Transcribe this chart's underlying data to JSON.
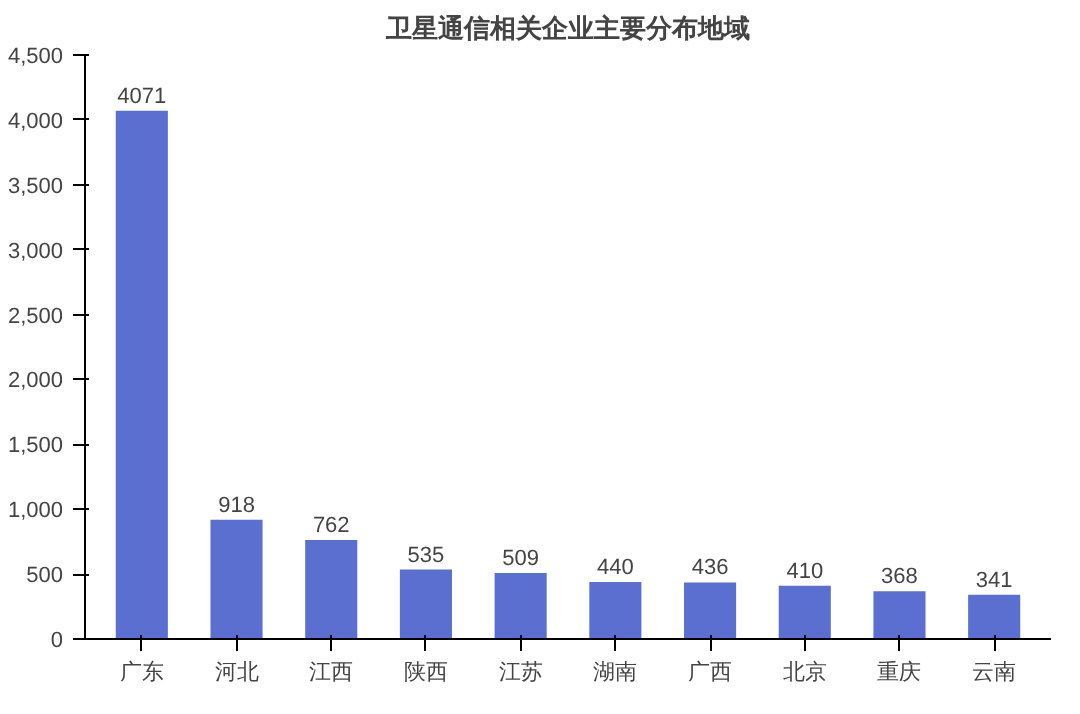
{
  "chart_data": {
    "type": "bar",
    "title": "卫星通信相关企业主要分布地域",
    "categories": [
      "广东",
      "河北",
      "江西",
      "陕西",
      "江苏",
      "湖南",
      "广西",
      "北京",
      "重庆",
      "云南"
    ],
    "values": [
      4071,
      918,
      762,
      535,
      509,
      440,
      436,
      410,
      368,
      341
    ],
    "color": "#5a6fd0",
    "ylim": [
      0,
      4500
    ],
    "yticks": [
      0,
      500,
      {
        "value": 1000,
        "label": "1,000"
      },
      {
        "value": 1500,
        "label": "1,500"
      },
      {
        "value": 2000,
        "label": "2,000"
      },
      {
        "value": 2500,
        "label": "2,500"
      },
      {
        "value": 3000,
        "label": "3,000"
      },
      {
        "value": 3500,
        "label": "3,500"
      },
      {
        "value": 4000,
        "label": "4,000"
      },
      {
        "value": 4500,
        "label": "4,500"
      }
    ],
    "data_labels": true
  }
}
